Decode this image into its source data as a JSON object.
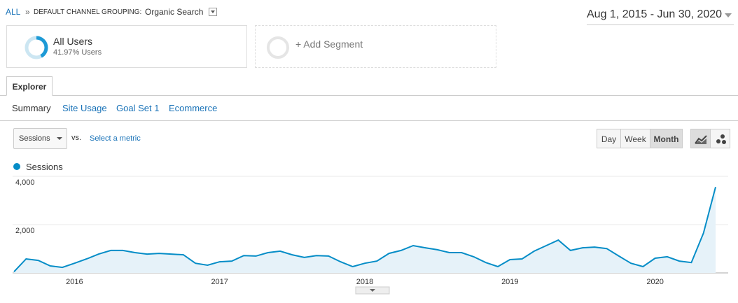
{
  "header": {
    "breadcrumb_root": "ALL",
    "dimension": "DEFAULT CHANNEL GROUPING:",
    "dimension_value": "Organic Search",
    "date_range": "Aug 1, 2015 - Jun 30, 2020"
  },
  "segments": [
    {
      "name": "All Users",
      "detail": "41.97% Users"
    },
    {
      "name": "+ Add Segment"
    }
  ],
  "tabs": {
    "active": "Explorer",
    "subtabs": [
      "Summary",
      "Site Usage",
      "Goal Set 1",
      "Ecommerce"
    ]
  },
  "controls": {
    "metric": "Sessions",
    "vs": "vs.",
    "select_metric": "Select a metric",
    "granularity": [
      "Day",
      "Week",
      "Month"
    ]
  },
  "chart_data": {
    "type": "area",
    "categories": [
      null,
      null,
      null,
      null,
      null,
      "2016",
      null,
      null,
      null,
      null,
      null,
      null,
      null,
      null,
      null,
      null,
      null,
      "2017",
      null,
      null,
      null,
      null,
      null,
      null,
      null,
      null,
      null,
      null,
      null,
      "2018",
      null,
      null,
      null,
      null,
      null,
      null,
      null,
      null,
      null,
      null,
      null,
      "2019",
      null,
      null,
      null,
      null,
      null,
      null,
      null,
      null,
      null,
      null,
      null,
      "2020",
      null,
      null,
      null,
      null,
      null
    ],
    "series": [
      {
        "name": "Sessions",
        "color": "#058dc7",
        "values": [
          50,
          580,
          520,
          290,
          230,
          400,
          580,
          780,
          930,
          930,
          840,
          780,
          810,
          780,
          750,
          400,
          320,
          460,
          490,
          720,
          700,
          840,
          900,
          750,
          640,
          720,
          700,
          460,
          260,
          400,
          490,
          810,
          930,
          1130,
          1040,
          960,
          840,
          840,
          670,
          430,
          260,
          550,
          580,
          900,
          1130,
          1360,
          930,
          1040,
          1070,
          1010,
          700,
          400,
          260,
          610,
          670,
          490,
          430,
          1650,
          3560
        ]
      }
    ],
    "ylim": [
      0,
      4000
    ],
    "yticks": [
      {
        "value": 2000,
        "label": "2,000"
      },
      {
        "value": 4000,
        "label": "4,000"
      }
    ],
    "grid": true
  }
}
